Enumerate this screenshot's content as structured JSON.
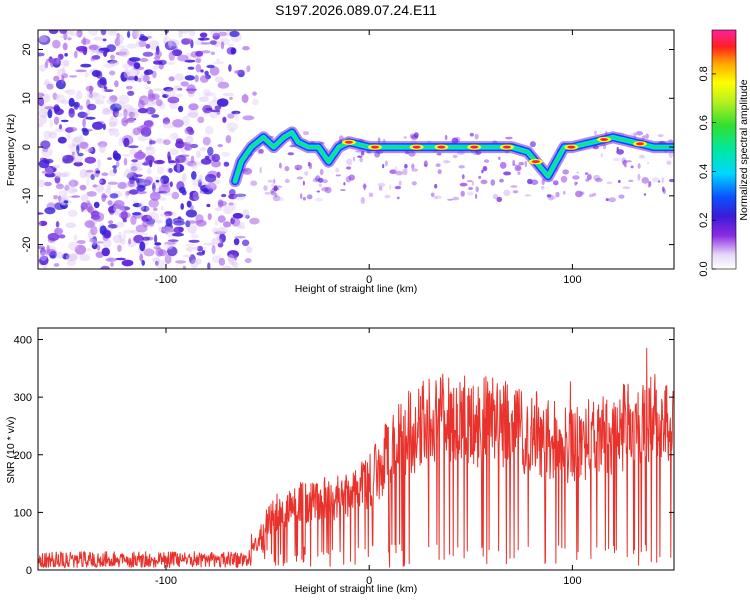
{
  "title": "S197.2026.089.07.24.E11",
  "chart_data": [
    {
      "type": "heatmap",
      "name": "spectrogram",
      "title": "S197.2026.089.07.24.E11",
      "xlabel": "Height of straight line (km)",
      "ylabel": "Frequency (Hz)",
      "xlim": [
        -163,
        150
      ],
      "ylim": [
        -25,
        24
      ],
      "xticks": [
        -100,
        0,
        100
      ],
      "yticks": [
        -20,
        -10,
        0,
        10,
        20
      ],
      "colorbar": {
        "label": "Normalized spectral amplitude",
        "range": [
          0,
          0.98
        ],
        "ticks": [
          0.0,
          0.2,
          0.4,
          0.6,
          0.8
        ]
      },
      "noise_region_x": [
        -163,
        -55
      ],
      "ridge": [
        {
          "x": -66,
          "y": -7
        },
        {
          "x": -63,
          "y": -3
        },
        {
          "x": -58,
          "y": 0
        },
        {
          "x": -52,
          "y": 2
        },
        {
          "x": -47,
          "y": 0
        },
        {
          "x": -42,
          "y": 2
        },
        {
          "x": -38,
          "y": 3
        },
        {
          "x": -35,
          "y": 1
        },
        {
          "x": -30,
          "y": 0
        },
        {
          "x": -25,
          "y": 0
        },
        {
          "x": -20,
          "y": -3
        },
        {
          "x": -15,
          "y": 0
        },
        {
          "x": -10,
          "y": 1
        },
        {
          "x": 0,
          "y": 0
        },
        {
          "x": 20,
          "y": 0
        },
        {
          "x": 40,
          "y": 0
        },
        {
          "x": 60,
          "y": 0
        },
        {
          "x": 70,
          "y": 0
        },
        {
          "x": 78,
          "y": -1
        },
        {
          "x": 84,
          "y": -4
        },
        {
          "x": 88,
          "y": -6
        },
        {
          "x": 92,
          "y": -3
        },
        {
          "x": 96,
          "y": 0
        },
        {
          "x": 100,
          "y": 0
        },
        {
          "x": 110,
          "y": 1
        },
        {
          "x": 120,
          "y": 2
        },
        {
          "x": 130,
          "y": 1
        },
        {
          "x": 140,
          "y": 0
        },
        {
          "x": 150,
          "y": 0
        }
      ]
    },
    {
      "type": "line",
      "name": "snr",
      "xlabel": "Height of straight line (km)",
      "ylabel": "SNR (10 * v/v)",
      "xlim": [
        -163,
        150
      ],
      "ylim": [
        0,
        420
      ],
      "xticks": [
        -100,
        0,
        100
      ],
      "yticks": [
        0,
        100,
        200,
        300,
        400
      ],
      "color": "#e8322b",
      "envelope": [
        {
          "x": -163,
          "y": 22
        },
        {
          "x": -60,
          "y": 22
        },
        {
          "x": -55,
          "y": 60
        },
        {
          "x": -50,
          "y": 110
        },
        {
          "x": -30,
          "y": 150
        },
        {
          "x": -10,
          "y": 160
        },
        {
          "x": 0,
          "y": 190
        },
        {
          "x": 10,
          "y": 255
        },
        {
          "x": 20,
          "y": 300
        },
        {
          "x": 30,
          "y": 320
        },
        {
          "x": 40,
          "y": 330
        },
        {
          "x": 60,
          "y": 320
        },
        {
          "x": 80,
          "y": 300
        },
        {
          "x": 100,
          "y": 270
        },
        {
          "x": 120,
          "y": 300
        },
        {
          "x": 140,
          "y": 330
        },
        {
          "x": 150,
          "y": 320
        }
      ]
    }
  ]
}
